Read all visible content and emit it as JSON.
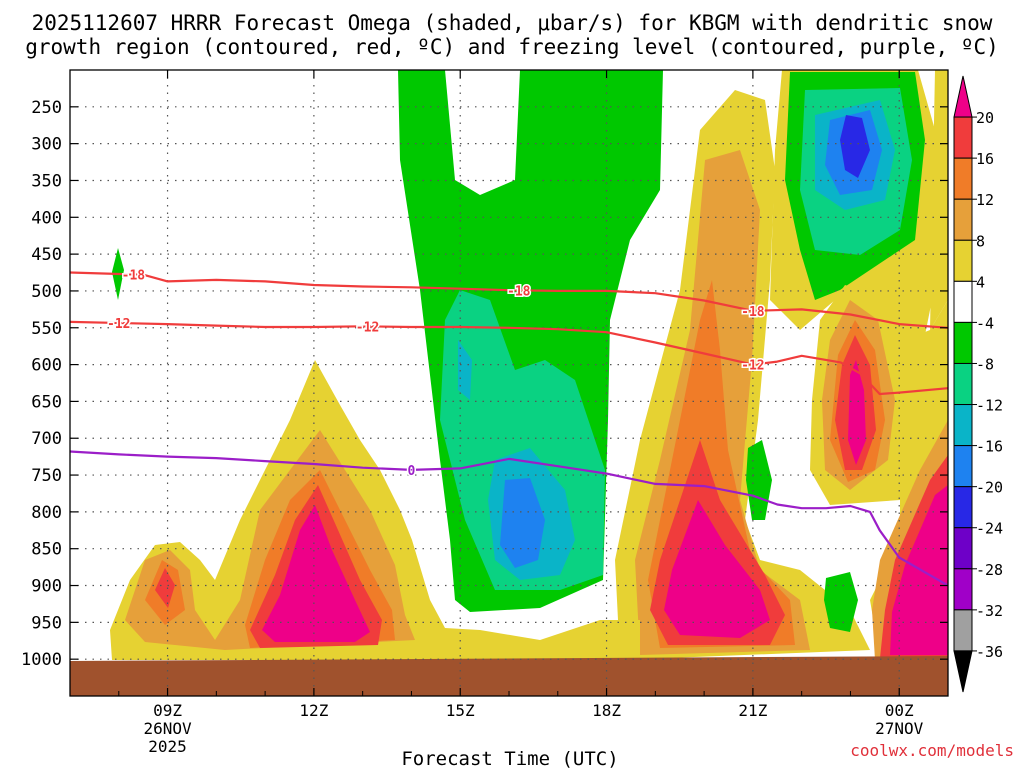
{
  "chart_data": {
    "type": "heatmap",
    "title_line1": "2025112607 HRRR Forecast Omega (shaded, μbar/s) for KBGM with dendritic snow",
    "title_line2": "growth region (contoured, red, ºC) and freezing level (contoured, purple, ºC)",
    "xlabel": "Forecast Time (UTC)",
    "ylabel": "",
    "credit": "coolwx.com/models",
    "x_range_hours": [
      7,
      25
    ],
    "y_range_mb": [
      200,
      1050
    ],
    "x_ticks": [
      {
        "hour": 9,
        "lines": [
          "09Z",
          "26NOV",
          "2025"
        ]
      },
      {
        "hour": 12,
        "lines": [
          "12Z"
        ]
      },
      {
        "hour": 15,
        "lines": [
          "15Z"
        ]
      },
      {
        "hour": 18,
        "lines": [
          "18Z"
        ]
      },
      {
        "hour": 21,
        "lines": [
          "21Z"
        ]
      },
      {
        "hour": 24,
        "lines": [
          "00Z",
          "27NOV"
        ]
      }
    ],
    "y_ticks": [
      250,
      300,
      350,
      400,
      450,
      500,
      550,
      600,
      650,
      700,
      750,
      800,
      850,
      900,
      950,
      1000
    ],
    "colorbar": {
      "levels": [
        "20",
        "16",
        "12",
        "8",
        "4",
        "-4",
        "-8",
        "-12",
        "-16",
        "-20",
        "-24",
        "-28",
        "-32",
        "-36"
      ],
      "colors": [
        "#ee0088",
        "#f03c3c",
        "#f07c28",
        "#e6a03a",
        "#e6d232",
        "#ffffff",
        "#00c800",
        "#0ad282",
        "#0ab4c8",
        "#1e82f0",
        "#2828e6",
        "#6e00c8",
        "#a000c8",
        "#a0a0a0",
        "#000000"
      ]
    },
    "colors": {
      "ground": "#a0522d",
      "dendritic_contours": "#f03c3c",
      "freezing_level": "#9b1ec8",
      "grid": "#555555"
    },
    "series": [
      {
        "name": "-18C isotherm",
        "label": "-18",
        "points": [
          [
            7.0,
            475
          ],
          [
            8.5,
            478
          ],
          [
            9.0,
            487
          ],
          [
            10.0,
            485
          ],
          [
            11.0,
            487
          ],
          [
            12.0,
            492
          ],
          [
            13.0,
            494
          ],
          [
            14.0,
            495
          ],
          [
            15.0,
            497
          ],
          [
            16.0,
            499
          ],
          [
            17.0,
            500
          ],
          [
            18.0,
            500
          ],
          [
            19.0,
            503
          ],
          [
            20.0,
            513
          ],
          [
            21.0,
            527
          ],
          [
            22.0,
            525
          ],
          [
            23.0,
            532
          ],
          [
            24.0,
            545
          ],
          [
            25.0,
            550
          ]
        ],
        "label_hours": [
          8.3,
          16.2,
          21.0
        ]
      },
      {
        "name": "-12C isotherm",
        "label": "-12",
        "points": [
          [
            7.0,
            542
          ],
          [
            9.0,
            545
          ],
          [
            10.0,
            547
          ],
          [
            11.0,
            549
          ],
          [
            12.0,
            549
          ],
          [
            13.0,
            548
          ],
          [
            14.0,
            549
          ],
          [
            15.0,
            549
          ],
          [
            16.0,
            550
          ],
          [
            17.0,
            552
          ],
          [
            18.0,
            556
          ],
          [
            19.0,
            570
          ],
          [
            20.0,
            585
          ],
          [
            21.0,
            600
          ],
          [
            21.5,
            596
          ],
          [
            22.0,
            588
          ],
          [
            22.8,
            597
          ],
          [
            23.2,
            612
          ],
          [
            23.6,
            640
          ],
          [
            24.0,
            638
          ],
          [
            25.0,
            632
          ]
        ],
        "label_hours": [
          8.0,
          13.1,
          21.0
        ]
      },
      {
        "name": "Freezing level (0C)",
        "label": "0",
        "points": [
          [
            7.0,
            718
          ],
          [
            8.0,
            722
          ],
          [
            9.0,
            725
          ],
          [
            10.0,
            727
          ],
          [
            11.0,
            731
          ],
          [
            12.0,
            735
          ],
          [
            13.0,
            740
          ],
          [
            14.0,
            743
          ],
          [
            15.0,
            741
          ],
          [
            16.0,
            728
          ],
          [
            17.0,
            738
          ],
          [
            18.0,
            748
          ],
          [
            19.0,
            762
          ],
          [
            20.0,
            765
          ],
          [
            21.0,
            778
          ],
          [
            21.5,
            790
          ],
          [
            22.0,
            795
          ],
          [
            22.5,
            795
          ],
          [
            23.0,
            792
          ],
          [
            23.4,
            800
          ],
          [
            23.6,
            825
          ],
          [
            24.0,
            862
          ],
          [
            25.0,
            900
          ]
        ],
        "label_hours": [
          14.0
        ]
      }
    ]
  }
}
